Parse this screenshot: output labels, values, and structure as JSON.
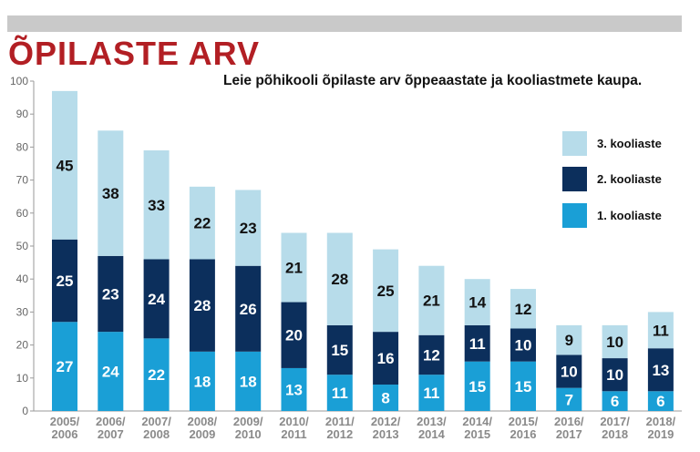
{
  "header": {
    "title": "ÕPILASTE ARV",
    "subtitle": "Leie põhikooli õpilaste arv õppeaastate ja kooliastmete kaupa."
  },
  "colors": {
    "stage1": "#1a9fd6",
    "stage2": "#0c2f5c",
    "stage3": "#b7dcea",
    "title": "#b21f24"
  },
  "chart_data": {
    "type": "bar",
    "stacked": true,
    "title": "ÕPILASTE ARV",
    "subtitle": "Leie põhikooli õpilaste arv õppeaastate ja kooliastmete kaupa.",
    "categories": [
      [
        "2005/",
        "2006"
      ],
      [
        "2006/",
        "2007"
      ],
      [
        "2007/",
        "2008"
      ],
      [
        "2008/",
        "2009"
      ],
      [
        "2009/",
        "2010"
      ],
      [
        "2010/",
        "2011"
      ],
      [
        "2011/",
        "2012"
      ],
      [
        "2012/",
        "2013"
      ],
      [
        "2013/",
        "2014"
      ],
      [
        "2014/",
        "2015"
      ],
      [
        "2015/",
        "2016"
      ],
      [
        "2016/",
        "2017"
      ],
      [
        "2017/",
        "2018"
      ],
      [
        "2018/",
        "2019"
      ]
    ],
    "series": [
      {
        "name": "1. kooliaste",
        "key": "stage1",
        "values": [
          27,
          24,
          22,
          18,
          18,
          13,
          11,
          8,
          11,
          15,
          15,
          7,
          6,
          6
        ]
      },
      {
        "name": "2. kooliaste",
        "key": "stage2",
        "values": [
          25,
          23,
          24,
          28,
          26,
          20,
          15,
          16,
          12,
          11,
          10,
          10,
          10,
          13
        ]
      },
      {
        "name": "3. kooliaste",
        "key": "stage3",
        "values": [
          45,
          38,
          33,
          22,
          23,
          21,
          28,
          25,
          21,
          14,
          12,
          9,
          10,
          11
        ]
      }
    ],
    "ylim": [
      0,
      100
    ],
    "yticks": [
      0,
      10,
      20,
      30,
      40,
      50,
      60,
      70,
      80,
      90,
      100
    ],
    "grid": false,
    "legend": {
      "position": "right",
      "order": [
        "3. kooliaste",
        "2. kooliaste",
        "1. kooliaste"
      ]
    }
  }
}
